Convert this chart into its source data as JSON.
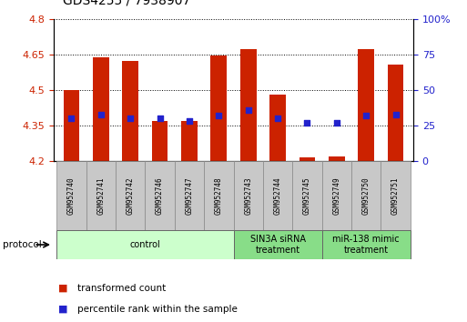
{
  "title": "GDS4255 / 7938907",
  "samples": [
    "GSM952740",
    "GSM952741",
    "GSM952742",
    "GSM952746",
    "GSM952747",
    "GSM952748",
    "GSM952743",
    "GSM952744",
    "GSM952745",
    "GSM952749",
    "GSM952750",
    "GSM952751"
  ],
  "transformed_count": [
    4.5,
    4.64,
    4.625,
    4.37,
    4.37,
    4.645,
    4.675,
    4.48,
    4.215,
    4.22,
    4.675,
    4.61
  ],
  "percentile_rank": [
    30,
    33,
    30,
    30,
    28,
    32,
    36,
    30,
    27,
    27,
    32,
    33
  ],
  "ylim_left": [
    4.2,
    4.8
  ],
  "ylim_right": [
    0,
    100
  ],
  "bar_color": "#cc2200",
  "dot_color": "#2222cc",
  "left_axis_color": "#cc2200",
  "right_axis_color": "#2222cc",
  "yticks_left": [
    4.2,
    4.35,
    4.5,
    4.65,
    4.8
  ],
  "yticks_right": [
    0,
    25,
    50,
    75,
    100
  ],
  "bar_bottom": 4.2,
  "group_data": [
    {
      "start": 0,
      "end": 6,
      "label": "control",
      "color": "#ccffcc"
    },
    {
      "start": 6,
      "end": 9,
      "label": "SIN3A siRNA\ntreatment",
      "color": "#88dd88"
    },
    {
      "start": 9,
      "end": 12,
      "label": "miR-138 mimic\ntreatment",
      "color": "#88dd88"
    }
  ],
  "legend_items": [
    {
      "label": "transformed count",
      "color": "#cc2200"
    },
    {
      "label": "percentile rank within the sample",
      "color": "#2222cc"
    }
  ],
  "protocol_label": "protocol"
}
